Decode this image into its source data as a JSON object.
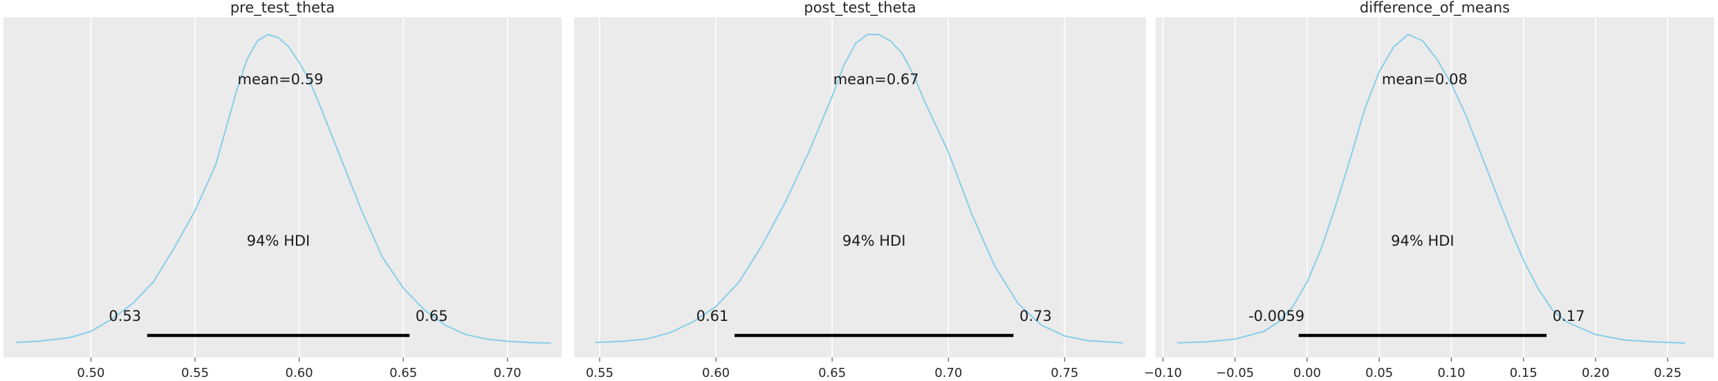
{
  "chart_data": [
    {
      "type": "line",
      "title": "pre_test_theta",
      "xlim": [
        0.458,
        0.726
      ],
      "xticks": [
        0.5,
        0.55,
        0.6,
        0.65,
        0.7
      ],
      "xtick_labels": [
        "0.50",
        "0.55",
        "0.60",
        "0.65",
        "0.70"
      ],
      "mean_label": "mean=0.59",
      "hdi_label": "94% HDI",
      "hdi_low": 0.527,
      "hdi_high": 0.653,
      "hdi_low_label": "0.53",
      "hdi_high_label": "0.65",
      "line_color": "#87ceeb",
      "density": {
        "x": [
          0.464,
          0.475,
          0.49,
          0.5,
          0.51,
          0.52,
          0.53,
          0.54,
          0.55,
          0.56,
          0.565,
          0.57,
          0.575,
          0.58,
          0.585,
          0.59,
          0.595,
          0.6,
          0.605,
          0.61,
          0.62,
          0.63,
          0.64,
          0.65,
          0.66,
          0.67,
          0.68,
          0.69,
          0.7,
          0.71,
          0.721
        ],
        "y": [
          0.004,
          0.008,
          0.02,
          0.04,
          0.08,
          0.13,
          0.2,
          0.31,
          0.43,
          0.58,
          0.7,
          0.82,
          0.92,
          0.98,
          1.0,
          0.99,
          0.96,
          0.91,
          0.85,
          0.77,
          0.6,
          0.43,
          0.28,
          0.18,
          0.11,
          0.06,
          0.03,
          0.015,
          0.008,
          0.004,
          0.002
        ]
      }
    },
    {
      "type": "line",
      "title": "post_test_theta",
      "xlim": [
        0.539,
        0.785
      ],
      "xticks": [
        0.55,
        0.6,
        0.65,
        0.7,
        0.75
      ],
      "xtick_labels": [
        "0.55",
        "0.60",
        "0.65",
        "0.70",
        "0.75"
      ],
      "mean_label": "mean=0.67",
      "hdi_label": "94% HDI",
      "hdi_low": 0.608,
      "hdi_high": 0.728,
      "hdi_low_label": "0.61",
      "hdi_high_label": "0.73",
      "line_color": "#87ceeb",
      "density": {
        "x": [
          0.548,
          0.56,
          0.57,
          0.58,
          0.59,
          0.6,
          0.61,
          0.62,
          0.63,
          0.64,
          0.65,
          0.655,
          0.66,
          0.665,
          0.67,
          0.675,
          0.68,
          0.685,
          0.69,
          0.7,
          0.71,
          0.72,
          0.73,
          0.74,
          0.75,
          0.76,
          0.775
        ],
        "y": [
          0.004,
          0.008,
          0.015,
          0.035,
          0.07,
          0.12,
          0.2,
          0.32,
          0.46,
          0.62,
          0.8,
          0.9,
          0.97,
          1.0,
          1.0,
          0.98,
          0.94,
          0.87,
          0.78,
          0.62,
          0.42,
          0.25,
          0.13,
          0.06,
          0.025,
          0.01,
          0.003
        ]
      }
    },
    {
      "type": "line",
      "title": "difference_of_means",
      "xlim": [
        -0.105,
        0.282
      ],
      "xticks": [
        -0.1,
        -0.05,
        0.0,
        0.05,
        0.1,
        0.15,
        0.2,
        0.25
      ],
      "xtick_labels": [
        "−0.10",
        "−0.05",
        "0.00",
        "0.05",
        "0.10",
        "0.15",
        "0.20",
        "0.25"
      ],
      "mean_label": "mean=0.08",
      "hdi_label": "94% HDI",
      "hdi_low": -0.0059,
      "hdi_high": 0.166,
      "hdi_low_label": "-0.0059",
      "hdi_high_label": "0.17",
      "line_color": "#87ceeb",
      "density": {
        "x": [
          -0.09,
          -0.07,
          -0.05,
          -0.03,
          -0.02,
          -0.01,
          0.0,
          0.01,
          0.02,
          0.03,
          0.04,
          0.05,
          0.06,
          0.07,
          0.08,
          0.09,
          0.1,
          0.11,
          0.12,
          0.13,
          0.14,
          0.15,
          0.16,
          0.17,
          0.18,
          0.2,
          0.22,
          0.24,
          0.262
        ],
        "y": [
          0.003,
          0.006,
          0.015,
          0.04,
          0.07,
          0.12,
          0.2,
          0.31,
          0.45,
          0.6,
          0.76,
          0.88,
          0.96,
          1.0,
          0.98,
          0.92,
          0.84,
          0.74,
          0.62,
          0.5,
          0.38,
          0.27,
          0.18,
          0.11,
          0.07,
          0.03,
          0.012,
          0.006,
          0.002
        ]
      }
    }
  ]
}
